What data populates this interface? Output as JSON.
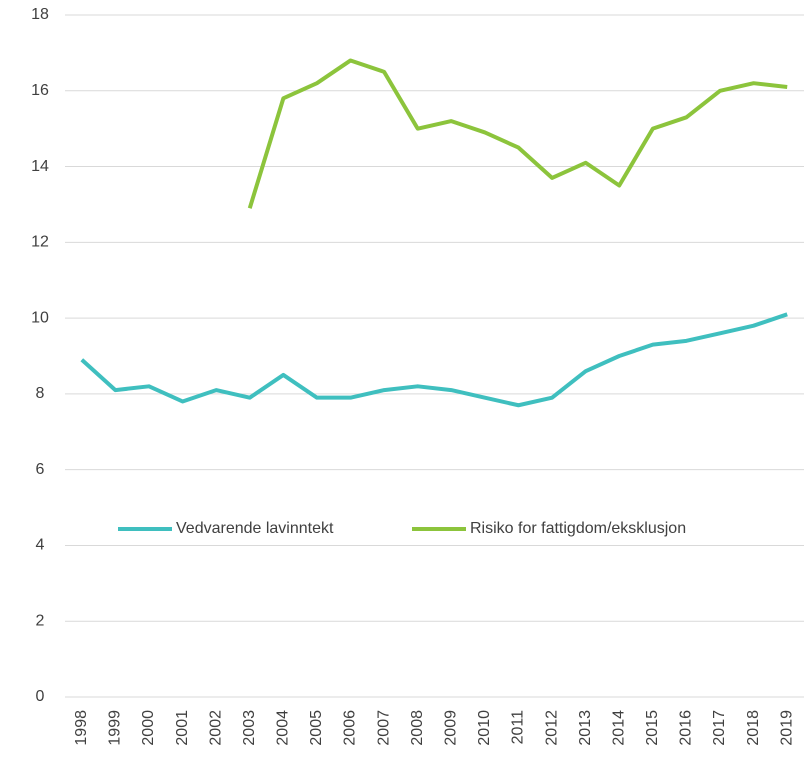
{
  "chart_data": {
    "type": "line",
    "categories": [
      "1998",
      "1999",
      "2000",
      "2001",
      "2002",
      "2003",
      "2004",
      "2005",
      "2006",
      "2007",
      "2008",
      "2009",
      "2010",
      "2011",
      "2012",
      "2013",
      "2014",
      "2015",
      "2016",
      "2017",
      "2018",
      "2019"
    ],
    "series": [
      {
        "name": "Vedvarende lavinntekt",
        "color": "#3fbfbf",
        "values": [
          8.9,
          8.1,
          8.2,
          7.8,
          8.1,
          7.9,
          8.5,
          7.9,
          7.9,
          8.1,
          8.2,
          8.1,
          7.9,
          7.7,
          7.9,
          8.6,
          9.0,
          9.3,
          9.4,
          9.6,
          9.8,
          10.1
        ]
      },
      {
        "name": "Risiko for fattigdom/eksklusjon",
        "color": "#8cc43c",
        "values": [
          null,
          null,
          null,
          null,
          null,
          12.9,
          15.8,
          16.2,
          16.8,
          16.5,
          15.0,
          15.2,
          14.9,
          14.5,
          13.7,
          14.1,
          13.5,
          15.0,
          15.3,
          16.0,
          16.2,
          16.1
        ]
      }
    ],
    "ylim": [
      0,
      18
    ],
    "yticks": [
      0,
      2,
      4,
      6,
      8,
      10,
      12,
      14,
      16,
      18
    ],
    "grid": true,
    "legend": "center"
  }
}
